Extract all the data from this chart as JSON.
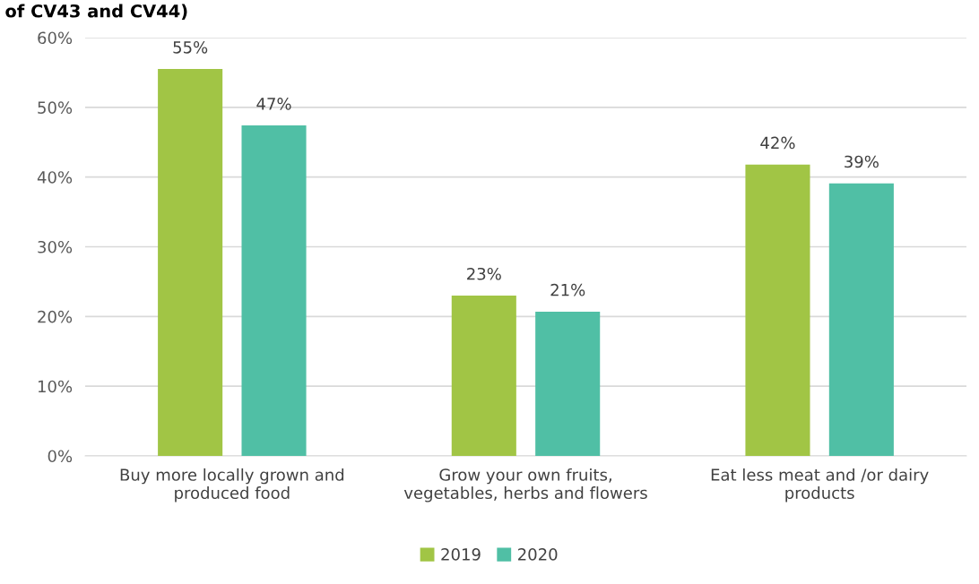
{
  "chart_data": {
    "type": "bar",
    "title": "of CV43 and CV44)",
    "categories": [
      "Buy more locally grown and\nproduced food",
      "Grow your own fruits,\nvegetables, herbs and flowers",
      "Eat less meat and /or dairy\nproducts"
    ],
    "series": [
      {
        "name": "2019",
        "color": "#a1c545",
        "values": [
          55.5,
          23.0,
          41.8
        ],
        "value_labels": [
          "55%",
          "23%",
          "42%"
        ]
      },
      {
        "name": "2020",
        "color": "#50bfa5",
        "values": [
          47.4,
          20.7,
          39.1
        ],
        "value_labels": [
          "47%",
          "21%",
          "39%"
        ]
      }
    ],
    "ylim": [
      0,
      60
    ],
    "yticks": [
      {
        "value": 0,
        "label": "0%"
      },
      {
        "value": 10,
        "label": "10%"
      },
      {
        "value": 20,
        "label": "20%"
      },
      {
        "value": 30,
        "label": "30%"
      },
      {
        "value": 40,
        "label": "40%"
      },
      {
        "value": 50,
        "label": "50%"
      },
      {
        "value": 60,
        "label": "60%"
      }
    ],
    "grid": "y",
    "legend": "bottom"
  }
}
